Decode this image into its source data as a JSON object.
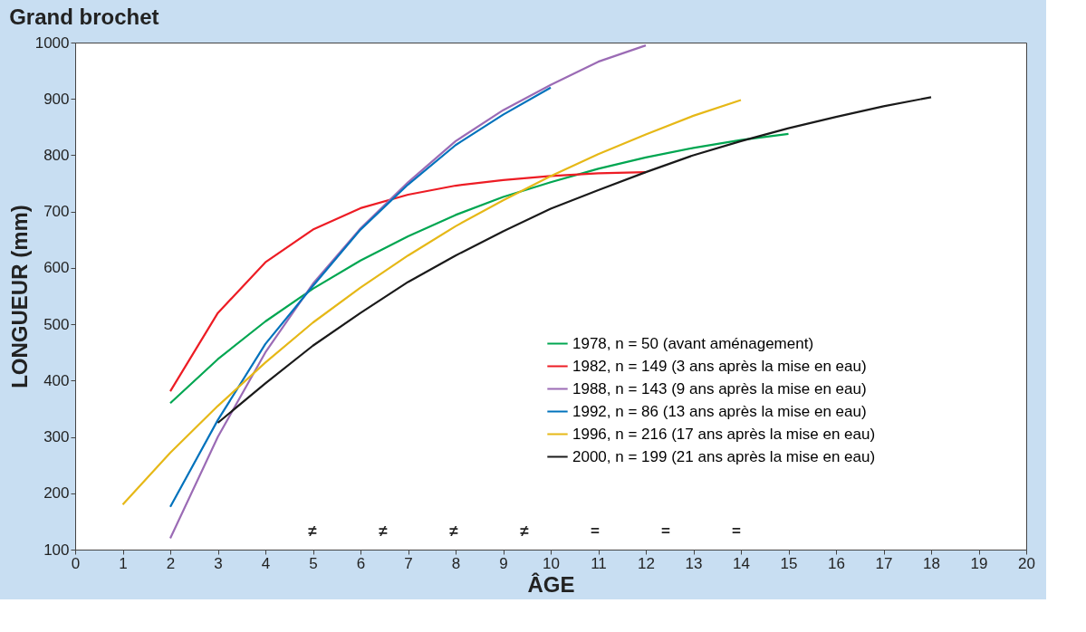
{
  "chart_data": {
    "type": "line",
    "title": "Grand brochet",
    "xlabel": "ÂGE",
    "ylabel": "LONGUEUR (mm)",
    "xlim": [
      0,
      20
    ],
    "xticks": [
      0,
      1,
      2,
      3,
      4,
      5,
      6,
      7,
      8,
      9,
      10,
      11,
      12,
      13,
      14,
      15,
      16,
      17,
      18,
      19,
      20
    ],
    "ylim": [
      100,
      1000
    ],
    "yticks": [
      100,
      200,
      300,
      400,
      500,
      600,
      700,
      800,
      900,
      1000
    ],
    "grid": false,
    "legend": "bottom right",
    "marker": "none",
    "line_style": "solid",
    "series": [
      {
        "name": "1978, n = 50     (avant aménagement)",
        "color": "#00a651",
        "x": [
          2,
          3,
          4,
          5,
          6,
          7,
          8,
          9,
          10,
          11,
          12,
          13,
          14,
          15
        ],
        "values": [
          360,
          438,
          505,
          563,
          613,
          656,
          694,
          726,
          752,
          776,
          796,
          813,
          827,
          838
        ]
      },
      {
        "name": "1982, n = 149   (3 ans après la mise en eau)",
        "color": "#ed1c24",
        "x": [
          2,
          3,
          4,
          5,
          6,
          7,
          8,
          9,
          10,
          11,
          12
        ],
        "values": [
          381,
          520,
          610,
          668,
          706,
          730,
          746,
          756,
          763,
          768,
          770
        ]
      },
      {
        "name": "1988, n = 143   (9 ans après la mise en eau)",
        "color": "#9b6bb5",
        "x": [
          2,
          3,
          4,
          5,
          6,
          7,
          8,
          9,
          10,
          11,
          12
        ],
        "values": [
          120,
          300,
          450,
          572,
          670,
          752,
          825,
          880,
          925,
          966,
          995
        ]
      },
      {
        "name": "1992, n = 86     (13 ans après la mise en eau)",
        "color": "#0072bc",
        "x": [
          2,
          3,
          4,
          5,
          6,
          7,
          8,
          9,
          10
        ],
        "values": [
          176,
          330,
          465,
          568,
          668,
          748,
          818,
          872,
          920
        ]
      },
      {
        "name": "1996, n = 216   (17 ans après la mise en eau)",
        "color": "#e6b817",
        "x": [
          1,
          2,
          3,
          4,
          5,
          6,
          7,
          8,
          9,
          10,
          11,
          12,
          13,
          14
        ],
        "values": [
          180,
          272,
          355,
          432,
          503,
          565,
          622,
          674,
          720,
          763,
          802,
          837,
          870,
          898
        ]
      },
      {
        "name": "2000, n = 199   (21 ans après la mise en eau)",
        "color": "#1a1a1a",
        "x": [
          3,
          4,
          5,
          6,
          7,
          8,
          9,
          10,
          11,
          12,
          13,
          14,
          15,
          16,
          17,
          18
        ],
        "values": [
          325,
          395,
          462,
          520,
          575,
          622,
          665,
          705,
          738,
          770,
          800,
          825,
          848,
          868,
          887,
          903
        ]
      }
    ],
    "annotations": [
      "≠",
      "≠",
      "≠",
      "≠",
      "=",
      "=",
      "="
    ]
  }
}
